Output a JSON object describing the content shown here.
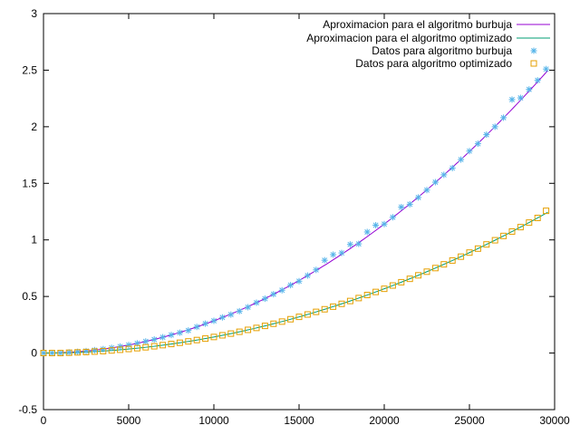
{
  "chart_data": {
    "type": "scatter",
    "title": "",
    "xlabel": "",
    "ylabel": "",
    "xlim": [
      0,
      30000
    ],
    "ylim": [
      -0.5,
      3
    ],
    "grid": false,
    "legend_position": "top-right",
    "x_ticks": [
      {
        "value": 0,
        "label": "0"
      },
      {
        "value": 5000,
        "label": "5000"
      },
      {
        "value": 10000,
        "label": "10000"
      },
      {
        "value": 15000,
        "label": "15000"
      },
      {
        "value": 20000,
        "label": "20000"
      },
      {
        "value": 25000,
        "label": "25000"
      },
      {
        "value": 30000,
        "label": "30000"
      }
    ],
    "y_ticks": [
      {
        "value": -0.5,
        "label": "-0.5"
      },
      {
        "value": 0,
        "label": "0"
      },
      {
        "value": 0.5,
        "label": "0.5"
      },
      {
        "value": 1,
        "label": "1"
      },
      {
        "value": 1.5,
        "label": "1.5"
      },
      {
        "value": 2,
        "label": "2"
      },
      {
        "value": 2.5,
        "label": "2.5"
      },
      {
        "value": 3,
        "label": "3"
      }
    ],
    "series": [
      {
        "name": "Aproximacion para el algoritmo burbuja",
        "kind": "line",
        "color": "#9400d3",
        "coefficients": [
          0,
          0,
          2.85e-09
        ]
      },
      {
        "name": "Aproximacion para el algoritmo optimizado",
        "kind": "line",
        "color": "#009e73",
        "coefficients": [
          0,
          0,
          1.42e-09
        ]
      },
      {
        "name": "Datos para algoritmo burbuja",
        "kind": "points",
        "marker": "asterisk",
        "color": "#56b4e9",
        "x": [
          0,
          500,
          1000,
          1500,
          2000,
          2500,
          3000,
          3500,
          4000,
          4500,
          5000,
          5500,
          6000,
          6500,
          7000,
          7500,
          8000,
          8500,
          9000,
          9500,
          10000,
          10500,
          11000,
          11500,
          12000,
          12500,
          13000,
          13500,
          14000,
          14500,
          15000,
          15500,
          16000,
          16500,
          17000,
          17500,
          18000,
          18500,
          19000,
          19500,
          20000,
          20500,
          21000,
          21500,
          22000,
          22500,
          23000,
          23500,
          24000,
          24500,
          25000,
          25500,
          26000,
          26500,
          27000,
          27500,
          28000,
          28500,
          29000,
          29500
        ],
        "y": [
          0.0,
          0.0,
          0.0,
          0.006,
          0.011,
          0.018,
          0.026,
          0.035,
          0.046,
          0.058,
          0.071,
          0.086,
          0.103,
          0.12,
          0.14,
          0.16,
          0.18,
          0.2,
          0.231,
          0.26,
          0.285,
          0.315,
          0.34,
          0.37,
          0.405,
          0.445,
          0.48,
          0.52,
          0.555,
          0.6,
          0.635,
          0.685,
          0.735,
          0.82,
          0.87,
          0.885,
          0.96,
          0.965,
          1.07,
          1.13,
          1.14,
          1.2,
          1.29,
          1.315,
          1.375,
          1.44,
          1.51,
          1.575,
          1.635,
          1.71,
          1.785,
          1.85,
          1.93,
          2.0,
          2.08,
          2.24,
          2.255,
          2.33,
          2.41,
          2.51
        ]
      },
      {
        "name": "Datos para algoritmo optimizado",
        "kind": "points",
        "marker": "square",
        "color": "#e69f00",
        "x": [
          0,
          500,
          1000,
          1500,
          2000,
          2500,
          3000,
          3500,
          4000,
          4500,
          5000,
          5500,
          6000,
          6500,
          7000,
          7500,
          8000,
          8500,
          9000,
          9500,
          10000,
          10500,
          11000,
          11500,
          12000,
          12500,
          13000,
          13500,
          14000,
          14500,
          15000,
          15500,
          16000,
          16500,
          17000,
          17500,
          18000,
          18500,
          19000,
          19500,
          20000,
          20500,
          21000,
          21500,
          22000,
          22500,
          23000,
          23500,
          24000,
          24500,
          25000,
          25500,
          26000,
          26500,
          27000,
          27500,
          28000,
          28500,
          29000,
          29500
        ],
        "y": [
          0.0,
          0.0,
          0.0,
          0.003,
          0.006,
          0.009,
          0.013,
          0.017,
          0.023,
          0.029,
          0.036,
          0.043,
          0.051,
          0.06,
          0.07,
          0.08,
          0.091,
          0.103,
          0.115,
          0.128,
          0.142,
          0.157,
          0.172,
          0.188,
          0.205,
          0.222,
          0.24,
          0.259,
          0.278,
          0.299,
          0.32,
          0.341,
          0.364,
          0.387,
          0.41,
          0.435,
          0.46,
          0.486,
          0.513,
          0.54,
          0.568,
          0.597,
          0.626,
          0.656,
          0.687,
          0.719,
          0.751,
          0.784,
          0.818,
          0.852,
          0.888,
          0.923,
          0.96,
          0.997,
          1.035,
          1.074,
          1.113,
          1.153,
          1.194,
          1.257
        ]
      }
    ]
  }
}
